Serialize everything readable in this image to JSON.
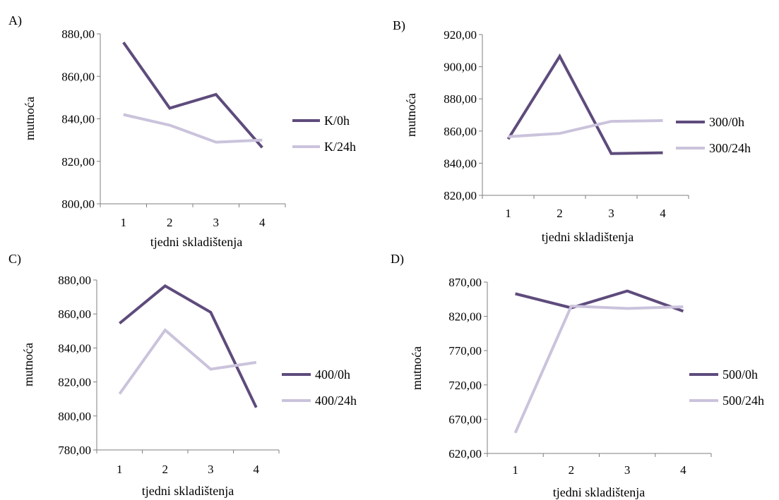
{
  "chart_data": [
    {
      "panel_label": "A)",
      "type": "line",
      "x": [
        "1",
        "2",
        "3",
        "4"
      ],
      "xlabel": "tjedni skladištenja",
      "ylabel": "mutnoća",
      "ylim": [
        800,
        880
      ],
      "yticks": [
        "800,00",
        "820,00",
        "840,00",
        "860,00",
        "880,00"
      ],
      "grid": false,
      "legend_position": "right",
      "series": [
        {
          "name": "K/0h",
          "color": "#5e4b7c",
          "values": [
            876,
            845,
            851.5,
            826.5
          ]
        },
        {
          "name": "K/24h",
          "color": "#cbc3dc",
          "values": [
            842,
            837,
            829,
            830
          ]
        }
      ]
    },
    {
      "panel_label": "B)",
      "type": "line",
      "x": [
        "1",
        "2",
        "3",
        "4"
      ],
      "xlabel": "tjedni skladištenja",
      "ylabel": "mutnoća",
      "ylim": [
        820,
        920
      ],
      "yticks": [
        "820,00",
        "840,00",
        "860,00",
        "880,00",
        "900,00",
        "920,00"
      ],
      "grid": false,
      "legend_position": "right",
      "series": [
        {
          "name": "300/0h",
          "color": "#5e4b7c",
          "values": [
            855,
            906.5,
            846,
            846.5
          ]
        },
        {
          "name": "300/24h",
          "color": "#cbc3dc",
          "values": [
            856.5,
            858.5,
            866,
            866.5
          ]
        }
      ]
    },
    {
      "panel_label": "C)",
      "type": "line",
      "x": [
        "1",
        "2",
        "3",
        "4"
      ],
      "xlabel": "tjedni skladištenja",
      "ylabel": "mutnoća",
      "ylim": [
        780,
        880
      ],
      "yticks": [
        "780,00",
        "800,00",
        "820,00",
        "840,00",
        "860,00",
        "880,00"
      ],
      "grid": false,
      "legend_position": "right",
      "series": [
        {
          "name": "400/0h",
          "color": "#5e4b7c",
          "values": [
            854.5,
            876.5,
            861,
            805
          ]
        },
        {
          "name": "400/24h",
          "color": "#cbc3dc",
          "values": [
            813,
            850.5,
            827.5,
            831.5
          ]
        }
      ]
    },
    {
      "panel_label": "D)",
      "type": "line",
      "x": [
        "1",
        "2",
        "3",
        "4"
      ],
      "xlabel": "tjedni skladištenja",
      "ylabel": "mutnoća",
      "ylim": [
        620,
        870
      ],
      "yticks": [
        "620,00",
        "670,00",
        "720,00",
        "770,00",
        "820,00",
        "870,00"
      ],
      "grid": false,
      "legend_position": "right",
      "series": [
        {
          "name": "500/0h",
          "color": "#5e4b7c",
          "values": [
            853,
            832.5,
            857,
            827.5
          ]
        },
        {
          "name": "500/24h",
          "color": "#cbc3dc",
          "values": [
            650,
            835,
            831.5,
            834
          ]
        }
      ]
    }
  ]
}
